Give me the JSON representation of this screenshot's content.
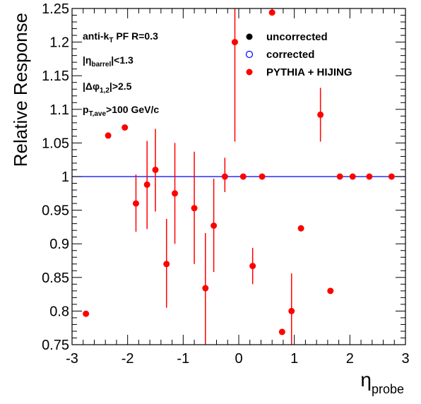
{
  "chart_data": {
    "type": "scatter",
    "xlabel": {
      "main": "η",
      "sub": "probe"
    },
    "ylabel": "Relative Response",
    "xlim": [
      -3,
      3
    ],
    "ylim": [
      0.75,
      1.25
    ],
    "x_ticks": [
      "-3",
      "-2",
      "-1",
      "0",
      "1",
      "2",
      "3"
    ],
    "y_ticks": [
      "0.75",
      "0.8",
      "0.85",
      "0.9",
      "0.95",
      "1",
      "1.05",
      "1.1",
      "1.15",
      "1.2",
      "1.25"
    ],
    "x_tick_values": [
      -3,
      -2,
      -1,
      0,
      1,
      2,
      3
    ],
    "y_tick_values": [
      0.75,
      0.8,
      0.85,
      0.9,
      0.95,
      1.0,
      1.05,
      1.1,
      1.15,
      1.2,
      1.25
    ],
    "reference_line": {
      "y": 1.0,
      "color": "#0000ff"
    },
    "annotations": [
      {
        "text": "anti-k",
        "sub": "T",
        "tail": " PF R=0.3"
      },
      {
        "text": "|η",
        "sub": "barrel",
        "tail": "|<1.3"
      },
      {
        "text": "|Δφ",
        "sub": "1,2",
        "tail": "|>2.5"
      },
      {
        "text": "p",
        "sub": "T,ave",
        "tail": ">100 GeV/c"
      }
    ],
    "legend": {
      "placement": "top-right",
      "entries": [
        {
          "label": "uncorrected",
          "marker": "filled-circle",
          "color": "#000000"
        },
        {
          "label": "corrected",
          "marker": "open-circle",
          "color": "#0000ff"
        },
        {
          "label": "PYTHIA + HIJING",
          "marker": "filled-circle",
          "color": "#ff0000"
        }
      ]
    },
    "series": [
      {
        "name": "PYTHIA + HIJING",
        "color": "#ff0000",
        "points": [
          {
            "x": -2.75,
            "y": 0.796,
            "lo": 0.796,
            "hi": 0.796
          },
          {
            "x": -2.35,
            "y": 1.061,
            "lo": 1.061,
            "hi": 1.061
          },
          {
            "x": -2.05,
            "y": 1.073,
            "lo": 1.073,
            "hi": 1.073
          },
          {
            "x": -1.85,
            "y": 0.96,
            "lo": 0.918,
            "hi": 1.003
          },
          {
            "x": -1.65,
            "y": 0.988,
            "lo": 0.922,
            "hi": 1.053
          },
          {
            "x": -1.5,
            "y": 1.01,
            "lo": 0.948,
            "hi": 1.071
          },
          {
            "x": -1.3,
            "y": 0.87,
            "lo": 0.805,
            "hi": 0.937
          },
          {
            "x": -1.15,
            "y": 0.975,
            "lo": 0.9,
            "hi": 1.05
          },
          {
            "x": -0.8,
            "y": 0.953,
            "lo": 0.87,
            "hi": 1.037
          },
          {
            "x": -0.6,
            "y": 0.834,
            "lo": 0.752,
            "hi": 0.916
          },
          {
            "x": -0.45,
            "y": 0.927,
            "lo": 0.858,
            "hi": 0.997
          },
          {
            "x": -0.25,
            "y": 1.0,
            "lo": 0.977,
            "hi": 1.028
          },
          {
            "x": -0.07,
            "y": 1.2,
            "lo": 1.052,
            "hi": 1.25
          },
          {
            "x": 0.08,
            "y": 1.0,
            "lo": 1.0,
            "hi": 1.0
          },
          {
            "x": 0.25,
            "y": 0.867,
            "lo": 0.84,
            "hi": 0.894
          },
          {
            "x": 0.42,
            "y": 1.0,
            "lo": 1.0,
            "hi": 1.0
          },
          {
            "x": 0.6,
            "y": 1.244,
            "lo": 1.244,
            "hi": 1.244
          },
          {
            "x": 0.78,
            "y": 0.769,
            "lo": 0.769,
            "hi": 0.769
          },
          {
            "x": 0.95,
            "y": 0.8,
            "lo": 0.745,
            "hi": 0.856
          },
          {
            "x": 1.12,
            "y": 0.923,
            "lo": 0.923,
            "hi": 0.923
          },
          {
            "x": 1.47,
            "y": 1.092,
            "lo": 1.052,
            "hi": 1.132
          },
          {
            "x": 1.65,
            "y": 0.83,
            "lo": 0.83,
            "hi": 0.83
          },
          {
            "x": 1.82,
            "y": 1.0,
            "lo": 1.0,
            "hi": 1.0
          },
          {
            "x": 2.05,
            "y": 1.0,
            "lo": 1.0,
            "hi": 1.0
          },
          {
            "x": 2.35,
            "y": 1.0,
            "lo": 1.0,
            "hi": 1.0
          },
          {
            "x": 2.75,
            "y": 1.0,
            "lo": 1.0,
            "hi": 1.0
          }
        ]
      }
    ]
  }
}
